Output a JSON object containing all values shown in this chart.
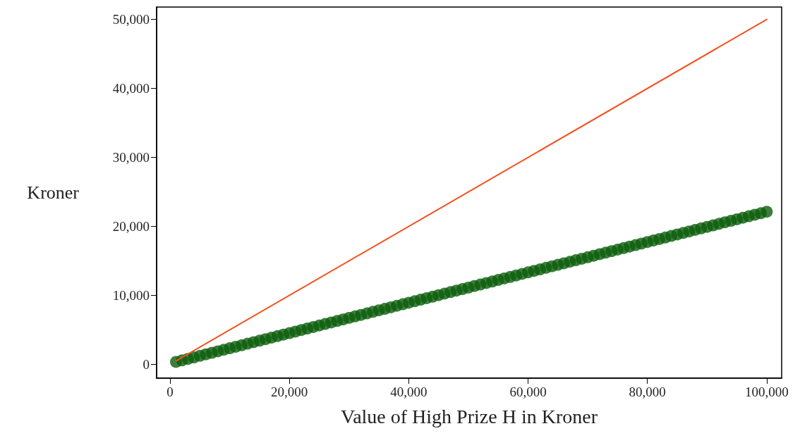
{
  "chart_data": {
    "type": "scatter",
    "xlabel": "Value of High Prize H in Kroner",
    "ylabel": "Kroner",
    "xlim": [
      -2250,
      102500
    ],
    "ylim": [
      -2000,
      51800
    ],
    "xticks": [
      0,
      {
        "value": 20000,
        "label": "20,000"
      },
      {
        "value": 40000,
        "label": "40,000"
      },
      {
        "value": 60000,
        "label": "60,000"
      },
      {
        "value": 80000,
        "label": "80,000"
      },
      {
        "value": 100000,
        "label": "100,000"
      }
    ],
    "yticks": [
      0,
      {
        "value": 10000,
        "label": "10,000"
      },
      {
        "value": 20000,
        "label": "20,000"
      },
      {
        "value": 30000,
        "label": "30,000"
      },
      {
        "value": 40000,
        "label": "40,000"
      },
      {
        "value": 50000,
        "label": "50,000"
      }
    ],
    "grid": false,
    "series": [
      {
        "color": "#0b5e0b",
        "marker": "circle",
        "x": [
          1000,
          2000,
          3000,
          4000,
          5000,
          6000,
          7000,
          8000,
          9000,
          10000,
          11000,
          12000,
          13000,
          14000,
          15000,
          16000,
          17000,
          18000,
          19000,
          20000,
          21000,
          22000,
          23000,
          24000,
          25000,
          26000,
          27000,
          28000,
          29000,
          30000,
          31000,
          32000,
          33000,
          34000,
          35000,
          36000,
          37000,
          38000,
          39000,
          40000,
          41000,
          42000,
          43000,
          44000,
          45000,
          46000,
          47000,
          48000,
          49000,
          50000,
          51000,
          52000,
          53000,
          54000,
          55000,
          56000,
          57000,
          58000,
          59000,
          60000,
          61000,
          62000,
          63000,
          64000,
          65000,
          66000,
          67000,
          68000,
          69000,
          70000,
          71000,
          72000,
          73000,
          74000,
          75000,
          76000,
          77000,
          78000,
          79000,
          80000,
          81000,
          82000,
          83000,
          84000,
          85000,
          86000,
          87000,
          88000,
          89000,
          90000,
          91000,
          92000,
          93000,
          94000,
          95000,
          96000,
          97000,
          98000,
          99000,
          100000
        ],
        "values": [
          350,
          570,
          790,
          1010,
          1230,
          1450,
          1670,
          1890,
          2110,
          2330,
          2550,
          2770,
          2990,
          3210,
          3430,
          3650,
          3870,
          4090,
          4310,
          4530,
          4750,
          4970,
          5190,
          5410,
          5630,
          5850,
          6070,
          6290,
          6510,
          6730,
          6950,
          7170,
          7390,
          7610,
          7830,
          8050,
          8270,
          8490,
          8710,
          8930,
          9150,
          9370,
          9590,
          9810,
          10030,
          10250,
          10470,
          10690,
          10910,
          11130,
          11350,
          11570,
          11790,
          12010,
          12230,
          12450,
          12670,
          12890,
          13110,
          13330,
          13550,
          13770,
          13990,
          14210,
          14430,
          14650,
          14870,
          15090,
          15310,
          15530,
          15750,
          15970,
          16190,
          16410,
          16630,
          16850,
          17070,
          17290,
          17510,
          17730,
          17950,
          18170,
          18390,
          18610,
          18830,
          19050,
          19270,
          19490,
          19710,
          19930,
          20150,
          20370,
          20590,
          20810,
          21030,
          21250,
          21470,
          21690,
          21910,
          22130
        ]
      },
      {
        "type": "line",
        "color": "#f4511e",
        "line_style": "solid",
        "marker": "none",
        "x": [
          1000,
          100000
        ],
        "values": [
          500,
          50000
        ]
      }
    ]
  }
}
